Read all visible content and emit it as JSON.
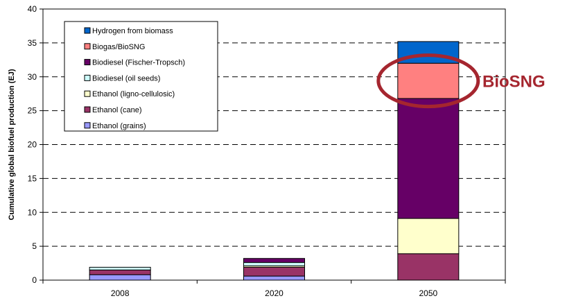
{
  "chart_data": {
    "type": "bar",
    "stacked": true,
    "categories": [
      "2008",
      "2020",
      "2050"
    ],
    "ylabel": "Cumulative global biofuel production (EJ)",
    "xlabel": "",
    "ylim": [
      0,
      40
    ],
    "yticks": [
      0,
      5,
      10,
      15,
      20,
      25,
      30,
      35,
      40
    ],
    "grid": "horizontal dashed",
    "legend_position": "top-left",
    "series": [
      {
        "name": "Ethanol (grains)",
        "color": "#9999ff",
        "values": [
          0.8,
          0.6,
          0
        ]
      },
      {
        "name": "Ethanol (cane)",
        "color": "#993366",
        "values": [
          0.7,
          1.3,
          3.9
        ]
      },
      {
        "name": "Ethanol (ligno-cellulosic)",
        "color": "#ffffcc",
        "values": [
          0,
          0.2,
          5.2
        ]
      },
      {
        "name": "Biodiesel (oil seeds)",
        "color": "#ccffff",
        "values": [
          0.4,
          0.5,
          0
        ]
      },
      {
        "name": "Biodiesel (Fischer-Tropsch)",
        "color": "#660066",
        "values": [
          0,
          0.6,
          17.7
        ]
      },
      {
        "name": "Biogas/BioSNG",
        "color": "#ff8080",
        "values": [
          0,
          0,
          5.2
        ]
      },
      {
        "name": "Hydrogen from biomass",
        "color": "#0066cc",
        "values": [
          0,
          0,
          3.2
        ]
      }
    ],
    "annotation": {
      "text": "BioSNG",
      "color": "#a5262f",
      "target_category": "2050",
      "target_series": "Biogas/BioSNG"
    }
  }
}
